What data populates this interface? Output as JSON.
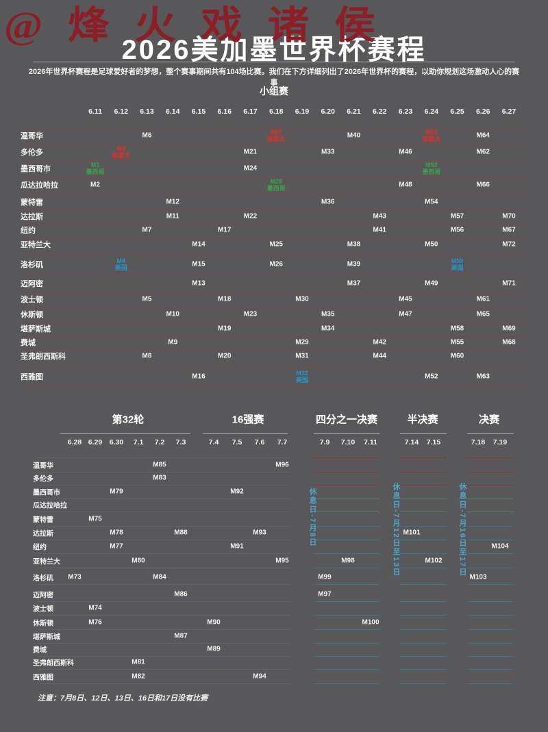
{
  "watermark": "@烽火戏诸侯",
  "header": {
    "title": "2026美加墨世界杯赛程",
    "subtitle": "2026年世界杯赛程是足球爱好者的梦想，整个赛事期间共有104场比赛。我们在下方详细列出了2026年世界杯的赛程，以助你规划这场激动人心的赛事"
  },
  "note": "注意：7月8日、12日、13日、16日和17日没有比赛",
  "colors": {
    "background": "#58585a",
    "text_white": "#f2f2f2",
    "mexico_green": "#3fa04c",
    "usa_blue": "#2596c8",
    "canada_red": "#c23a31",
    "rest_day_cyan": "#4aa8cc",
    "group_separator_red": "#a03737",
    "knockout_line_teal": "#357c99",
    "knockout_line_green": "#4f8a5f",
    "knockout_line_red": "#8a3434",
    "header_line_gray": "#c4c4c4"
  },
  "chart_data": {
    "type": "table",
    "group_stage": {
      "title": "小组赛",
      "dates": [
        "6.11",
        "6.12",
        "6.13",
        "6.14",
        "6.15",
        "6.16",
        "6.17",
        "6.18",
        "6.19",
        "6.20",
        "6.21",
        "6.22",
        "6.23",
        "6.24",
        "6.25",
        "6.26",
        "6.27"
      ],
      "cities": [
        "温哥华",
        "多伦多",
        "墨西哥市",
        "瓜达拉哈拉",
        "蒙特雷",
        "达拉斯",
        "纽约",
        "亚特兰大",
        "洛杉矶",
        "迈阿密",
        "波士顿",
        "休斯顿",
        "堪萨斯城",
        "费城",
        "圣弗朗西斯科",
        "西雅图"
      ],
      "matches": [
        {
          "label": "M6",
          "city": "温哥华",
          "date": "6.13"
        },
        {
          "label": "M27",
          "sub": "加拿大",
          "team": "canada",
          "city": "温哥华",
          "date": "6.18"
        },
        {
          "label": "M40",
          "city": "温哥华",
          "date": "6.21"
        },
        {
          "label": "M51",
          "sub": "加拿大",
          "team": "canada",
          "city": "温哥华",
          "date": "6.24"
        },
        {
          "label": "M64",
          "city": "温哥华",
          "date": "6.26"
        },
        {
          "label": "M3",
          "sub": "加拿大",
          "team": "canada",
          "city": "多伦多",
          "date": "6.12"
        },
        {
          "label": "M21",
          "city": "多伦多",
          "date": "6.17"
        },
        {
          "label": "M33",
          "city": "多伦多",
          "date": "6.20"
        },
        {
          "label": "M46",
          "city": "多伦多",
          "date": "6.23"
        },
        {
          "label": "M62",
          "city": "多伦多",
          "date": "6.26"
        },
        {
          "label": "M1",
          "sub": "墨西哥",
          "team": "mexico",
          "city": "墨西哥市",
          "date": "6.11"
        },
        {
          "label": "M24",
          "city": "墨西哥市",
          "date": "6.17"
        },
        {
          "label": "M53",
          "sub": "墨西哥",
          "team": "mexico",
          "city": "墨西哥市",
          "date": "6.24"
        },
        {
          "label": "M2",
          "city": "瓜达拉哈拉",
          "date": "6.11"
        },
        {
          "label": "M28",
          "sub": "墨西哥",
          "team": "mexico",
          "city": "瓜达拉哈拉",
          "date": "6.18"
        },
        {
          "label": "M48",
          "city": "瓜达拉哈拉",
          "date": "6.23"
        },
        {
          "label": "M66",
          "city": "瓜达拉哈拉",
          "date": "6.26"
        },
        {
          "label": "M12",
          "city": "蒙特雷",
          "date": "6.14"
        },
        {
          "label": "M36",
          "city": "蒙特雷",
          "date": "6.20"
        },
        {
          "label": "M54",
          "city": "蒙特雷",
          "date": "6.24"
        },
        {
          "label": "M11",
          "city": "达拉斯",
          "date": "6.14"
        },
        {
          "label": "M22",
          "city": "达拉斯",
          "date": "6.17"
        },
        {
          "label": "M43",
          "city": "达拉斯",
          "date": "6.22"
        },
        {
          "label": "M57",
          "city": "达拉斯",
          "date": "6.25"
        },
        {
          "label": "M70",
          "city": "达拉斯",
          "date": "6.27"
        },
        {
          "label": "M7",
          "city": "纽约",
          "date": "6.13"
        },
        {
          "label": "M17",
          "city": "纽约",
          "date": "6.16"
        },
        {
          "label": "M41",
          "city": "纽约",
          "date": "6.22"
        },
        {
          "label": "M56",
          "city": "纽约",
          "date": "6.25"
        },
        {
          "label": "M67",
          "city": "纽约",
          "date": "6.27"
        },
        {
          "label": "M14",
          "city": "亚特兰大",
          "date": "6.15"
        },
        {
          "label": "M25",
          "city": "亚特兰大",
          "date": "6.18"
        },
        {
          "label": "M38",
          "city": "亚特兰大",
          "date": "6.21"
        },
        {
          "label": "M50",
          "city": "亚特兰大",
          "date": "6.24"
        },
        {
          "label": "M72",
          "city": "亚特兰大",
          "date": "6.27"
        },
        {
          "label": "M4",
          "sub": "美国",
          "team": "usa",
          "city": "洛杉矶",
          "date": "6.12"
        },
        {
          "label": "M15",
          "city": "洛杉矶",
          "date": "6.15"
        },
        {
          "label": "M26",
          "city": "洛杉矶",
          "date": "6.18"
        },
        {
          "label": "M39",
          "city": "洛杉矶",
          "date": "6.21"
        },
        {
          "label": "M59",
          "sub": "美国",
          "team": "usa",
          "city": "洛杉矶",
          "date": "6.25"
        },
        {
          "label": "M13",
          "city": "迈阿密",
          "date": "6.15"
        },
        {
          "label": "M37",
          "city": "迈阿密",
          "date": "6.21"
        },
        {
          "label": "M49",
          "city": "迈阿密",
          "date": "6.24"
        },
        {
          "label": "M71",
          "city": "迈阿密",
          "date": "6.27"
        },
        {
          "label": "M5",
          "city": "波士顿",
          "date": "6.13"
        },
        {
          "label": "M18",
          "city": "波士顿",
          "date": "6.16"
        },
        {
          "label": "M30",
          "city": "波士顿",
          "date": "6.19"
        },
        {
          "label": "M45",
          "city": "波士顿",
          "date": "6.23"
        },
        {
          "label": "M61",
          "city": "波士顿",
          "date": "6.26"
        },
        {
          "label": "M10",
          "city": "休斯顿",
          "date": "6.14"
        },
        {
          "label": "M23",
          "city": "休斯顿",
          "date": "6.17"
        },
        {
          "label": "M35",
          "city": "休斯顿",
          "date": "6.20"
        },
        {
          "label": "M47",
          "city": "休斯顿",
          "date": "6.23"
        },
        {
          "label": "M65",
          "city": "休斯顿",
          "date": "6.26"
        },
        {
          "label": "M19",
          "city": "堪萨斯城",
          "date": "6.16"
        },
        {
          "label": "M34",
          "city": "堪萨斯城",
          "date": "6.20"
        },
        {
          "label": "M58",
          "city": "堪萨斯城",
          "date": "6.25"
        },
        {
          "label": "M69",
          "city": "堪萨斯城",
          "date": "6.27"
        },
        {
          "label": "M9",
          "city": "费城",
          "date": "6.14"
        },
        {
          "label": "M29",
          "city": "费城",
          "date": "6.19"
        },
        {
          "label": "M42",
          "city": "费城",
          "date": "6.22"
        },
        {
          "label": "M55",
          "city": "费城",
          "date": "6.25"
        },
        {
          "label": "M68",
          "city": "费城",
          "date": "6.27"
        },
        {
          "label": "M8",
          "city": "圣弗朗西斯科",
          "date": "6.13"
        },
        {
          "label": "M20",
          "city": "圣弗朗西斯科",
          "date": "6.16"
        },
        {
          "label": "M31",
          "city": "圣弗朗西斯科",
          "date": "6.19"
        },
        {
          "label": "M44",
          "city": "圣弗朗西斯科",
          "date": "6.22"
        },
        {
          "label": "M60",
          "city": "圣弗朗西斯科",
          "date": "6.25"
        },
        {
          "label": "M16",
          "city": "西雅图",
          "date": "6.15"
        },
        {
          "label": "M32",
          "sub": "美国",
          "team": "usa",
          "city": "西雅图",
          "date": "6.19"
        },
        {
          "label": "M52",
          "city": "西雅图",
          "date": "6.24"
        },
        {
          "label": "M63",
          "city": "西雅图",
          "date": "6.26"
        }
      ]
    },
    "knockout": {
      "sections": [
        {
          "title": "第32轮",
          "dates": [
            "6.28",
            "6.29",
            "6.30",
            "7.1",
            "7.2",
            "7.3"
          ]
        },
        {
          "title": "16强赛",
          "dates": [
            "7.4",
            "7.5",
            "7.6",
            "7.7"
          ]
        },
        {
          "title": "四分之一决赛",
          "dates": [
            "7.9",
            "7.10",
            "7.11"
          ]
        },
        {
          "title": "半决赛",
          "dates": [
            "7.14",
            "7.15"
          ]
        },
        {
          "title": "决赛",
          "dates": [
            "7.18",
            "7.19"
          ]
        }
      ],
      "rest_days": [
        "休息日-7月8日",
        "休息日-7月12日至13日",
        "休息日-7月16日至17日"
      ],
      "cities": [
        "温哥华",
        "多伦多",
        "墨西哥市",
        "瓜达拉哈拉",
        "蒙特雷",
        "达拉斯",
        "纽约",
        "亚特兰大",
        "洛杉矶",
        "迈阿密",
        "波士顿",
        "休斯顿",
        "堪萨斯城",
        "费城",
        "圣弗朗西斯科",
        "西雅图"
      ],
      "matches": [
        {
          "label": "M85",
          "city": "温哥华",
          "date": "7.2"
        },
        {
          "label": "M96",
          "city": "温哥华",
          "date": "7.7"
        },
        {
          "label": "M83",
          "city": "多伦多",
          "date": "7.2"
        },
        {
          "label": "M79",
          "city": "墨西哥市",
          "date": "6.30"
        },
        {
          "label": "M92",
          "city": "墨西哥市",
          "date": "7.5"
        },
        {
          "label": "M75",
          "city": "蒙特雷",
          "date": "6.29"
        },
        {
          "label": "M78",
          "city": "达拉斯",
          "date": "6.30"
        },
        {
          "label": "M88",
          "city": "达拉斯",
          "date": "7.3"
        },
        {
          "label": "M93",
          "city": "达拉斯",
          "date": "7.6"
        },
        {
          "label": "M101",
          "city": "达拉斯",
          "date": "7.14"
        },
        {
          "label": "M77",
          "city": "纽约",
          "date": "6.30"
        },
        {
          "label": "M91",
          "city": "纽约",
          "date": "7.5"
        },
        {
          "label": "M104",
          "city": "纽约",
          "date": "7.19"
        },
        {
          "label": "M80",
          "city": "亚特兰大",
          "date": "7.1"
        },
        {
          "label": "M95",
          "city": "亚特兰大",
          "date": "7.7"
        },
        {
          "label": "M98",
          "city": "亚特兰大",
          "date": "7.10"
        },
        {
          "label": "M102",
          "city": "亚特兰大",
          "date": "7.15"
        },
        {
          "label": "M73",
          "city": "洛杉矶",
          "date": "6.28"
        },
        {
          "label": "M84",
          "city": "洛杉矶",
          "date": "7.2"
        },
        {
          "label": "M99",
          "city": "洛杉矶",
          "date": "7.9"
        },
        {
          "label": "M103",
          "city": "洛杉矶",
          "date": "7.18"
        },
        {
          "label": "M86",
          "city": "迈阿密",
          "date": "7.3"
        },
        {
          "label": "M97",
          "city": "迈阿密",
          "date": "7.9"
        },
        {
          "label": "M74",
          "city": "波士顿",
          "date": "6.29"
        },
        {
          "label": "M76",
          "city": "休斯顿",
          "date": "6.29"
        },
        {
          "label": "M90",
          "city": "休斯顿",
          "date": "7.4"
        },
        {
          "label": "M100",
          "city": "休斯顿",
          "date": "7.11"
        },
        {
          "label": "M87",
          "city": "堪萨斯城",
          "date": "7.3"
        },
        {
          "label": "M89",
          "city": "费城",
          "date": "7.4"
        },
        {
          "label": "M81",
          "city": "圣弗朗西斯科",
          "date": "7.1"
        },
        {
          "label": "M82",
          "city": "西雅图",
          "date": "7.1"
        },
        {
          "label": "M94",
          "city": "西雅图",
          "date": "7.6"
        }
      ]
    }
  }
}
